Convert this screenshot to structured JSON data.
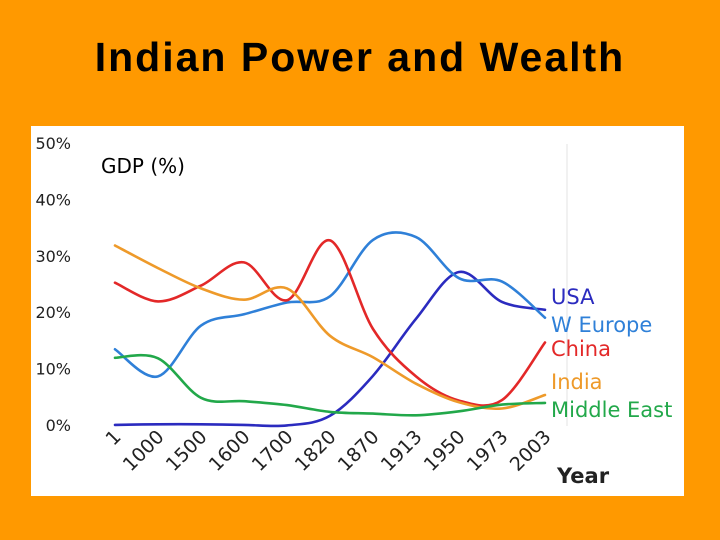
{
  "slide": {
    "title": "Indian Power and Wealth"
  },
  "chart_data": {
    "type": "line",
    "title": "GDP (%)",
    "xlabel": "Year",
    "ylabel": "",
    "ylim": [
      0,
      50
    ],
    "y_ticks": [
      "0%",
      "10%",
      "20%",
      "30%",
      "40%",
      "50%"
    ],
    "y_tick_values": [
      0,
      10,
      20,
      30,
      40,
      50
    ],
    "categories": [
      "1",
      "1000",
      "1500",
      "1600",
      "1700",
      "1820",
      "1870",
      "1913",
      "1950",
      "1973",
      "2003"
    ],
    "grid": false,
    "legend_placement": "right",
    "series": [
      {
        "name": "USA",
        "color": "#2b2bbf",
        "values": [
          0.2,
          0.3,
          0.3,
          0.2,
          0.1,
          1.8,
          8.9,
          19.0,
          27.3,
          22.0,
          20.6
        ]
      },
      {
        "name": "W Europe",
        "color": "#2f80d8",
        "values": [
          13.6,
          8.8,
          17.8,
          19.8,
          21.9,
          23.0,
          33.0,
          33.5,
          26.2,
          25.6,
          19.2
        ]
      },
      {
        "name": "China",
        "color": "#e32828",
        "values": [
          25.4,
          22.1,
          24.9,
          29.0,
          22.3,
          32.9,
          17.2,
          8.8,
          4.5,
          4.6,
          14.8
        ]
      },
      {
        "name": "India",
        "color": "#ee9a2a",
        "values": [
          32.0,
          28.0,
          24.4,
          22.4,
          24.4,
          16.0,
          12.2,
          7.5,
          4.2,
          3.1,
          5.5
        ]
      },
      {
        "name": "Middle East",
        "color": "#22a84a",
        "values": [
          12.1,
          12.0,
          5.0,
          4.4,
          3.7,
          2.5,
          2.2,
          1.9,
          2.6,
          3.8,
          4.1
        ]
      }
    ]
  }
}
